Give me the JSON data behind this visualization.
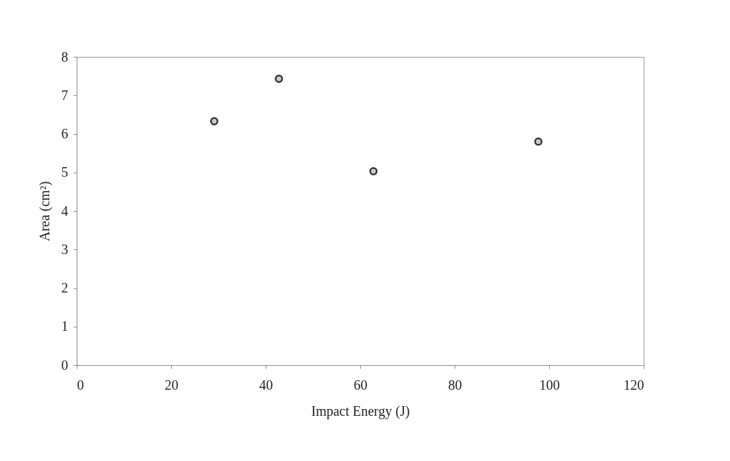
{
  "chart_data": {
    "type": "scatter",
    "xlabel": "Impact Energy (J)",
    "ylabel": "Area (cm²)",
    "x": [
      29.1,
      42.8,
      62.8,
      97.7
    ],
    "series": [
      {
        "color": "#333333",
        "values": [
          6.33,
          7.43,
          5.03,
          5.8
        ]
      }
    ],
    "xlim": [
      0,
      120
    ],
    "xticks": [
      0,
      20,
      40,
      60,
      80,
      100,
      120
    ],
    "ylim": [
      0,
      8
    ],
    "yticks": [
      0,
      1,
      2,
      3,
      4,
      5,
      6,
      7,
      8
    ],
    "grid": false,
    "legend": false,
    "marker": "circle"
  }
}
